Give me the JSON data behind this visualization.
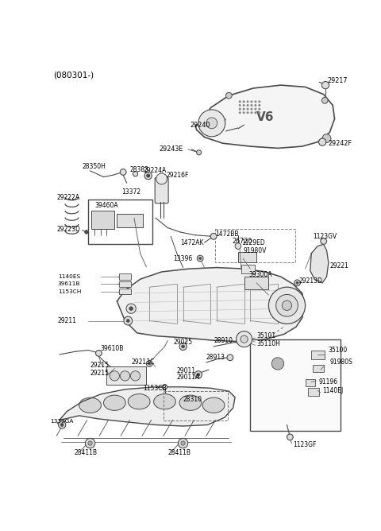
{
  "bg_color": "#ffffff",
  "line_color": "#4a4a4a",
  "text_color": "#000000",
  "title": "(080301-)",
  "fig_w": 4.8,
  "fig_h": 6.68,
  "dpi": 100
}
